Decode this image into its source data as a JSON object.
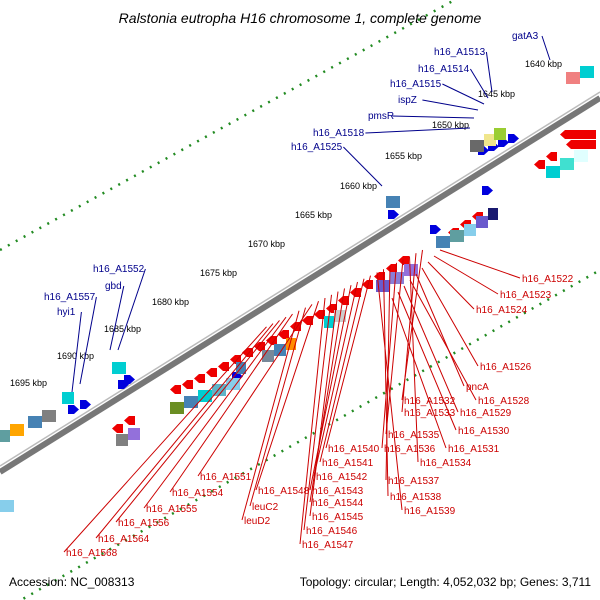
{
  "title": "Ralstonia eutropha H16 chromosome 1, complete genome",
  "footer": {
    "accession": "Accession: NC_008313",
    "summary": "Topology: circular; Length: 4,052,032 bp; Genes: 3,711"
  },
  "ticks": [
    "1640 kbp",
    "1645 kbp",
    "1650 kbp",
    "1655 kbp",
    "1660 kbp",
    "1665 kbp",
    "1670 kbp",
    "1675 kbp",
    "1680 kbp",
    "1685 kbp",
    "1690 kbp",
    "1695 kbp"
  ],
  "labels_top": [
    "gatA3",
    "h16_A1513",
    "h16_A1514",
    "h16_A1515",
    "ispZ",
    "pmsR",
    "h16_A1518",
    "h16_A1525",
    "h16_A1552",
    "gbd",
    "h16_A1557",
    "hyi1"
  ],
  "labels_bottom": [
    "h16_A1522",
    "h16_A1523",
    "h16_A1524",
    "h16_A1526",
    "pncA",
    "h16_A1528",
    "h16_A1529",
    "h16_A1530",
    "h16_A1531",
    "h16_A1532",
    "h16_A1533",
    "h16_A1534",
    "h16_A1535",
    "h16_A1536",
    "h16_A1537",
    "h16_A1538",
    "h16_A1539",
    "h16_A1540",
    "h16_A1541",
    "h16_A1542",
    "h16_A1543",
    "h16_A1544",
    "h16_A1545",
    "h16_A1546",
    "h16_A1547",
    "h16_A1548",
    "h16_A1551",
    "leuC2",
    "leuD2",
    "h16_A1554",
    "h16_A1555",
    "h16_A1556",
    "h16_A1564",
    "h16_A1568"
  ],
  "colors": {
    "forward_gene": "#0000dd",
    "reverse_gene": "#ee0000",
    "backbone": "#777777",
    "tick": "#228b22",
    "label_top": "#00008b",
    "label_bottom": "#cc0000"
  }
}
